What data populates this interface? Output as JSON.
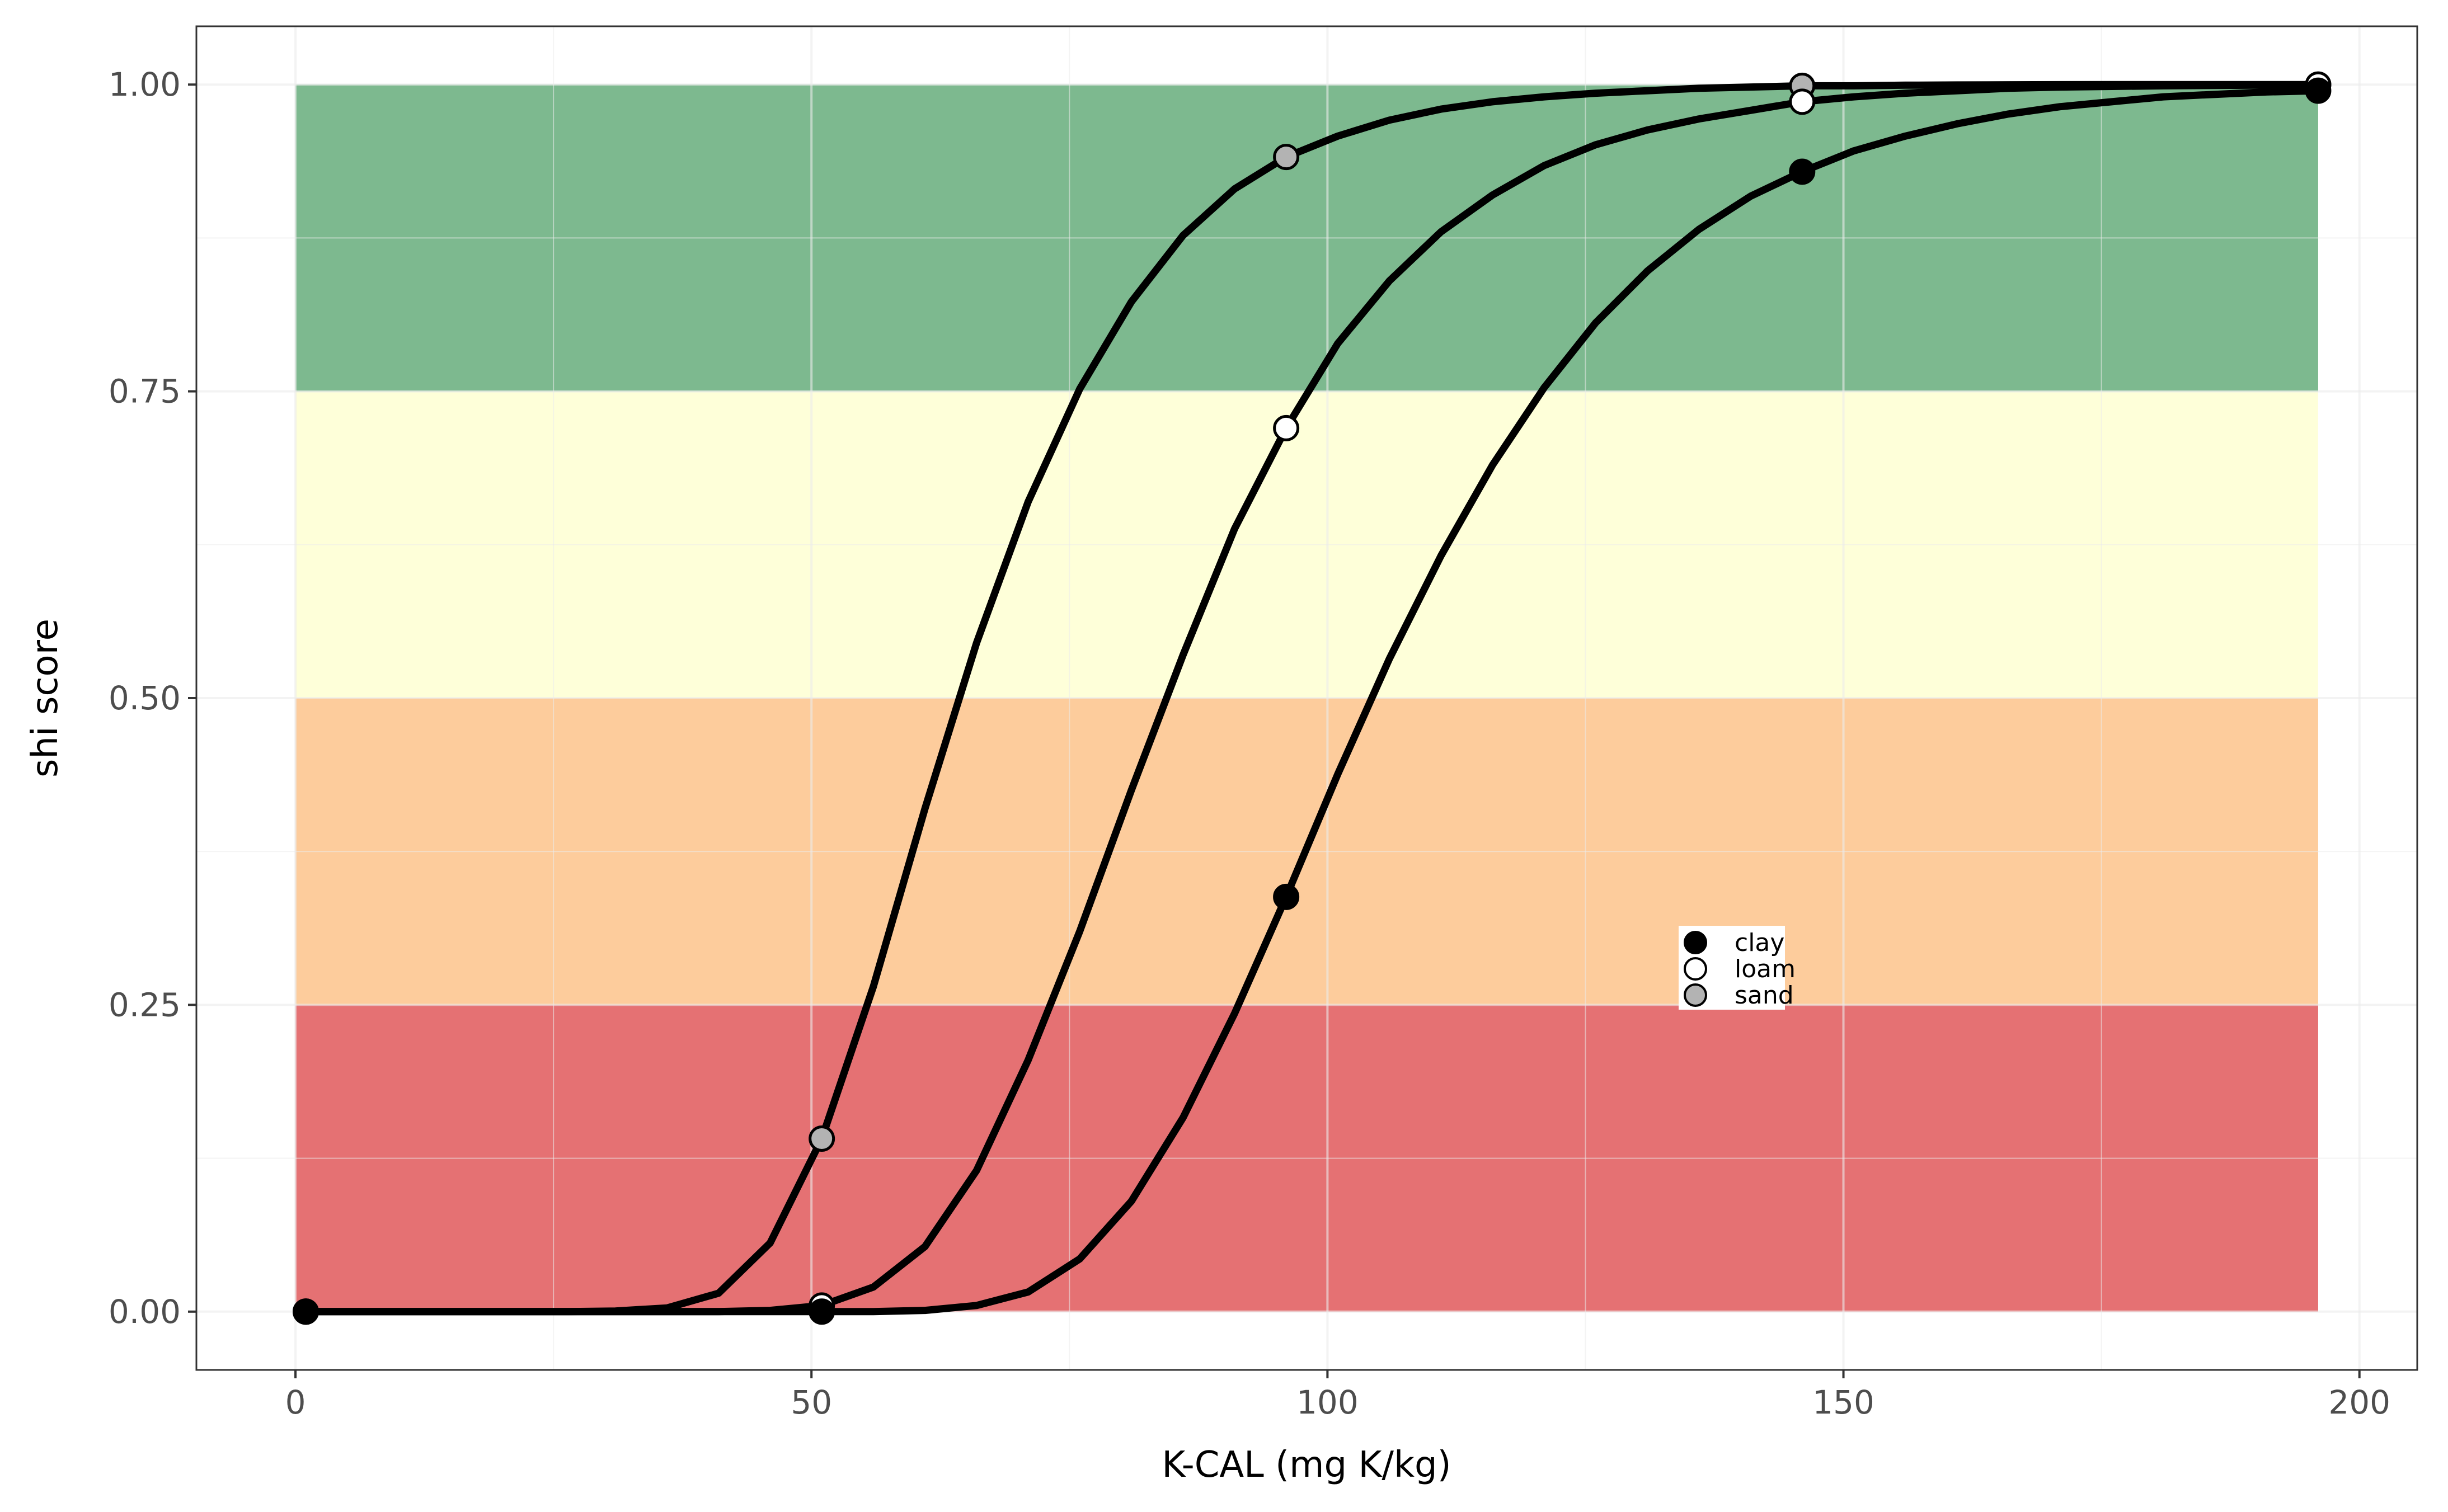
{
  "chart_data": {
    "type": "line",
    "title": "",
    "xlabel": "K-CAL (mg K/kg)",
    "ylabel": "shi score",
    "xlim": [
      -9.6,
      205.6
    ],
    "ylim": [
      -0.0475,
      1.0475
    ],
    "x_ticks": [
      0,
      50,
      100,
      150,
      200
    ],
    "x_tick_labels": [
      "0",
      "50",
      "100",
      "150",
      "200"
    ],
    "y_ticks": [
      0,
      0.25,
      0.5,
      0.75,
      1
    ],
    "y_tick_labels": [
      "0.00",
      "0.25",
      "0.50",
      "0.75",
      "1.00"
    ],
    "grid": true,
    "legend_position": "bottom-right-inside",
    "bands": [
      {
        "ymin": 0.0,
        "ymax": 0.25,
        "color": "#e57173"
      },
      {
        "ymin": 0.25,
        "ymax": 0.5,
        "color": "#fdcc9c"
      },
      {
        "ymin": 0.5,
        "ymax": 0.75,
        "color": "#feffd9"
      },
      {
        "ymin": 0.75,
        "ymax": 1.0,
        "color": "#7db98f"
      }
    ],
    "bands_x_range": [
      0,
      196
    ],
    "x": [
      1,
      6,
      11,
      16,
      21,
      26,
      31,
      36,
      41,
      46,
      51,
      56,
      61,
      66,
      71,
      76,
      81,
      86,
      91,
      96,
      101,
      106,
      111,
      116,
      121,
      126,
      131,
      136,
      141,
      146,
      151,
      156,
      161,
      166,
      171,
      176,
      181,
      186,
      191,
      196
    ],
    "series": [
      {
        "name": "sand",
        "marker_color": "#b3b3b3",
        "values": [
          0.0,
          0.0,
          0.0,
          0.0,
          0.0,
          0.0,
          0.0005,
          0.003,
          0.015,
          0.056,
          0.141,
          0.265,
          0.41,
          0.545,
          0.66,
          0.752,
          0.823,
          0.877,
          0.915,
          0.941,
          0.958,
          0.971,
          0.98,
          0.986,
          0.99,
          0.993,
          0.995,
          0.997,
          0.998,
          0.999,
          0.999,
          0.9995,
          0.9997,
          0.9998,
          0.9999,
          1.0,
          1.0,
          1.0,
          1.0,
          1.0
        ]
      },
      {
        "name": "loam",
        "marker_color": "#ffffff",
        "values": [
          0.0,
          0.0,
          0.0,
          0.0,
          0.0,
          0.0,
          0.0,
          0.0,
          0.0,
          0.001,
          0.005,
          0.02,
          0.053,
          0.115,
          0.205,
          0.31,
          0.425,
          0.535,
          0.638,
          0.72,
          0.789,
          0.84,
          0.88,
          0.91,
          0.934,
          0.951,
          0.963,
          0.972,
          0.979,
          0.986,
          0.99,
          0.993,
          0.995,
          0.997,
          0.998,
          0.9985,
          0.999,
          0.9993,
          0.9996,
          1.0
        ]
      },
      {
        "name": "clay",
        "marker_color": "#000000",
        "values": [
          0.0,
          0.0,
          0.0,
          0.0,
          0.0,
          0.0,
          0.0,
          0.0,
          0.0,
          0.0,
          0.0,
          0.0,
          0.001,
          0.005,
          0.016,
          0.043,
          0.09,
          0.158,
          0.243,
          0.338,
          0.438,
          0.532,
          0.616,
          0.69,
          0.753,
          0.806,
          0.848,
          0.882,
          0.909,
          0.929,
          0.946,
          0.958,
          0.968,
          0.976,
          0.982,
          0.986,
          0.99,
          0.992,
          0.994,
          0.995
        ]
      }
    ],
    "marker_x": [
      1,
      51,
      96,
      146,
      196
    ],
    "legend": [
      {
        "label": "clay",
        "color": "#000000"
      },
      {
        "label": "loam",
        "color": "#ffffff"
      },
      {
        "label": "sand",
        "color": "#b3b3b3"
      }
    ]
  }
}
